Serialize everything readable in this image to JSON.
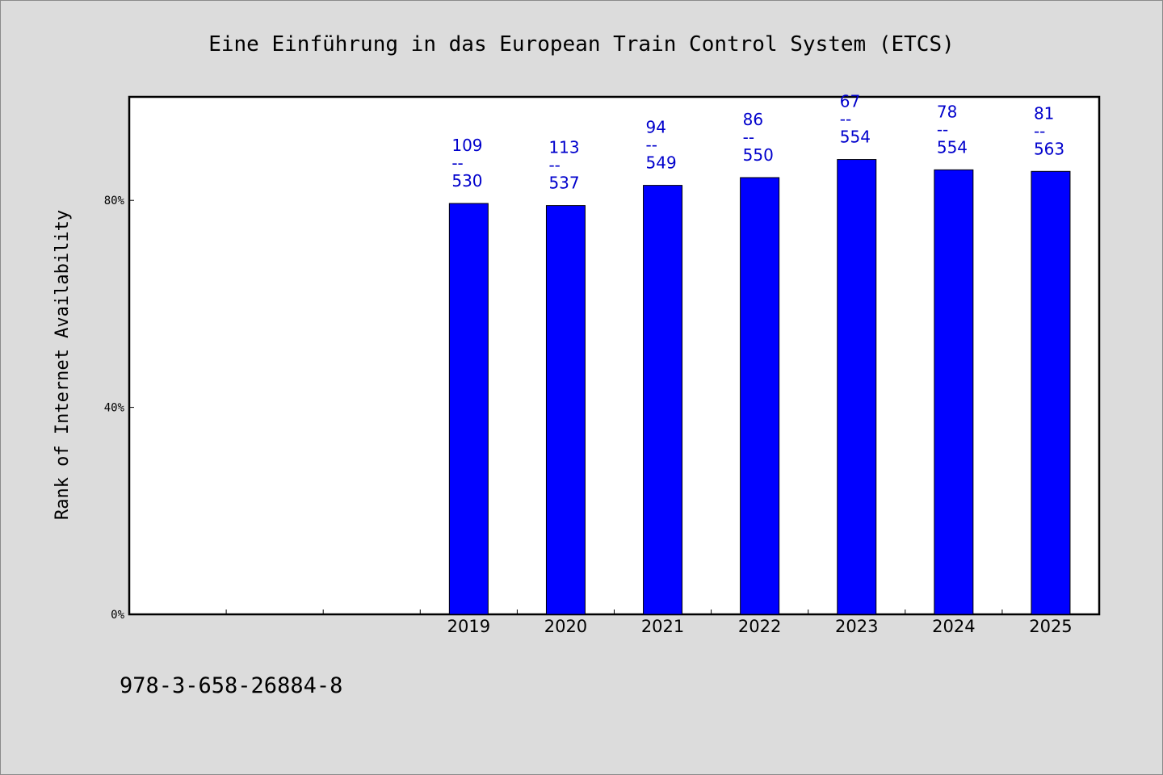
{
  "chart_data": {
    "type": "bar",
    "title": "Eine Einführung in das European Train Control System (ETCS)",
    "ylabel": "Rank of Internet Availability",
    "xlabel": "",
    "y_unit": "%",
    "ylim": [
      0,
      100
    ],
    "yticks": [
      0,
      40,
      80
    ],
    "ytick_labels": [
      "0%",
      "40%",
      "80%"
    ],
    "categories": [
      "",
      "",
      "",
      "2019",
      "2020",
      "2021",
      "2022",
      "2023",
      "2024",
      "2025"
    ],
    "values": [
      null,
      null,
      null,
      79.4,
      79.0,
      82.9,
      84.4,
      87.9,
      85.9,
      85.6
    ],
    "bar_labels": [
      null,
      null,
      null,
      {
        "top": "109",
        "sep": "--",
        "bottom": "530"
      },
      {
        "top": "113",
        "sep": "--",
        "bottom": "537"
      },
      {
        "top": "94",
        "sep": "--",
        "bottom": "549"
      },
      {
        "top": "86",
        "sep": "--",
        "bottom": "550"
      },
      {
        "top": "67",
        "sep": "--",
        "bottom": "554"
      },
      {
        "top": "78",
        "sep": "--",
        "bottom": "554"
      },
      {
        "top": "81",
        "sep": "--",
        "bottom": "563"
      }
    ],
    "grid": false,
    "legend": "none",
    "colors": {
      "bar": "#0000ff",
      "label": "#0000cc",
      "plot_bg": "#ffffff",
      "page_bg": "#dcdcdc"
    }
  },
  "footer": {
    "isbn": "978-3-658-26884-8"
  }
}
